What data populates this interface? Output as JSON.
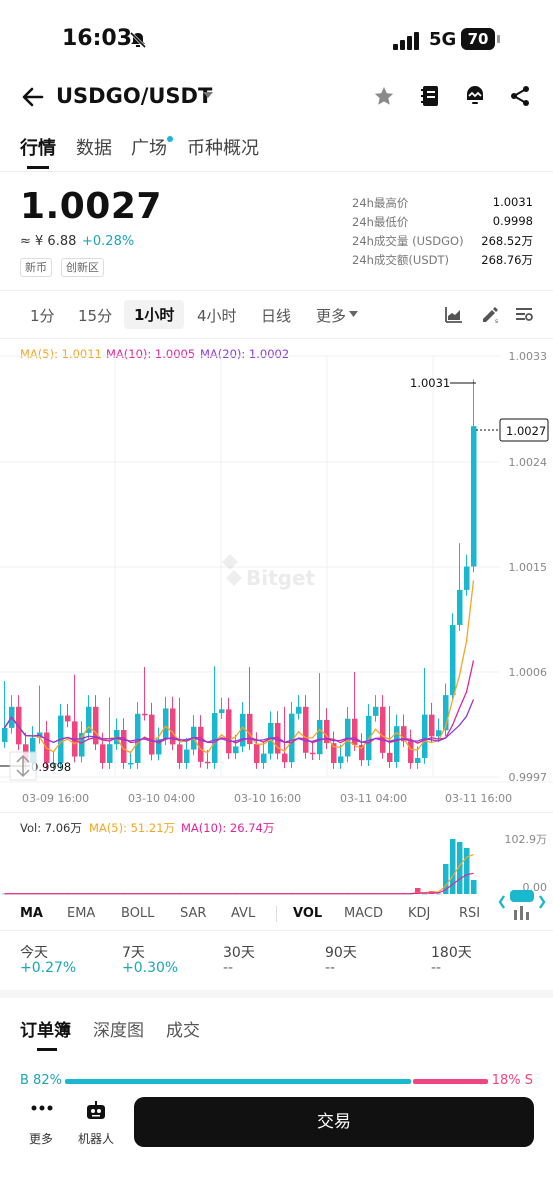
{
  "status_bar": {
    "time": "16:03",
    "network": "5G",
    "battery": "70"
  },
  "header": {
    "pair": "USDGO/USDT"
  },
  "tabs": [
    "行情",
    "数据",
    "广场",
    "币种概况"
  ],
  "ticker": {
    "price": "1.0027",
    "cny": "≈ ¥ 6.88",
    "change": "+0.28%",
    "tags": [
      "新币",
      "创新区"
    ],
    "stats": [
      {
        "label": "24h最高价",
        "value": "1.0031"
      },
      {
        "label": "24h最低价",
        "value": "0.9998"
      },
      {
        "label": "24h成交量 (USDGO)",
        "value": "268.52万"
      },
      {
        "label": "24h成交额(USDT)",
        "value": "268.76万"
      }
    ]
  },
  "timeframes": [
    "1分",
    "15分",
    "1小时",
    "4小时",
    "日线",
    "更多"
  ],
  "chart": {
    "ma_legend": {
      "ma5": "MA(5): 1.0011",
      "ma10": "MA(10): 1.0005",
      "ma20": "MA(20): 1.0002"
    },
    "y_ticks": [
      "1.0033",
      "1.0024",
      "1.0015",
      "1.0006",
      "0.9997"
    ],
    "x_ticks": [
      "03-09 16:00",
      "03-10 04:00",
      "03-10 16:00",
      "03-11 04:00",
      "03-11 16:00"
    ],
    "high_label": "1.0031",
    "low_label": "0.9998",
    "last_label": "1.0027",
    "watermark": "Bitget",
    "colors": {
      "up": "#19b8cf",
      "down": "#f0457f",
      "ma5": "#f5a623",
      "ma10": "#e0249b",
      "ma20": "#8e3ad6"
    }
  },
  "volume": {
    "legend": {
      "vol": "Vol: 7.06万",
      "ma5": "MA(5): 51.21万",
      "ma10": "MA(10): 26.74万"
    },
    "y_ticks": [
      "102.9万",
      "0.00"
    ]
  },
  "indicators": [
    "MA",
    "EMA",
    "BOLL",
    "SAR",
    "AVL",
    "VOL",
    "MACD",
    "KDJ",
    "RSI"
  ],
  "periods": [
    {
      "label": "今天",
      "value": "+0.27%"
    },
    {
      "label": "7天",
      "value": "+0.30%"
    },
    {
      "label": "30天",
      "value": "--"
    },
    {
      "label": "90天",
      "value": "--"
    },
    {
      "label": "180天",
      "value": "--"
    }
  ],
  "orderbook": {
    "tabs": [
      "订单簿",
      "深度图",
      "成交"
    ],
    "buy_label": "B 82%",
    "sell_label": "18% S",
    "buy_ratio": 0.82
  },
  "bottom": {
    "more": "更多",
    "bot": "机器人",
    "trade": "交易"
  }
}
